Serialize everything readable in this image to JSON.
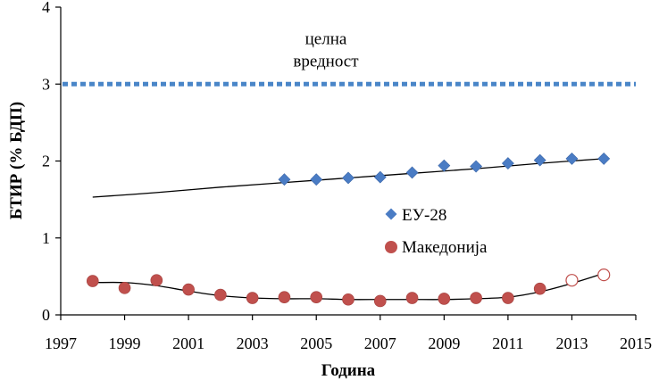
{
  "chart_data": {
    "type": "scatter",
    "xlabel": "Година",
    "ylabel": "БТИР (% БДП)",
    "xlim": [
      1997,
      2015
    ],
    "ylim": [
      0,
      4
    ],
    "xticks": [
      "1997",
      "1999",
      "2001",
      "2003",
      "2005",
      "2007",
      "2009",
      "2011",
      "2013",
      "2015"
    ],
    "yticks": [
      "0",
      "1",
      "2",
      "3",
      "4"
    ],
    "grid": false,
    "legend_position": "center-right",
    "target": {
      "value": 3,
      "label_line1": "целна",
      "label_line2": "вредност",
      "color": "#4a86c8"
    },
    "series": [
      {
        "name": "ЕУ-28",
        "marker": "diamond",
        "color": "#4a7cc4",
        "x": [
          2004,
          2005,
          2006,
          2007,
          2008,
          2009,
          2010,
          2011,
          2012,
          2013,
          2014
        ],
        "y": [
          1.76,
          1.76,
          1.78,
          1.79,
          1.85,
          1.94,
          1.93,
          1.97,
          2.01,
          2.03,
          2.03
        ]
      },
      {
        "name": "Македонија",
        "marker": "circle",
        "color": "#c0504d",
        "x": [
          1998,
          1999,
          2000,
          2001,
          2002,
          2003,
          2004,
          2005,
          2006,
          2007,
          2008,
          2009,
          2010,
          2011,
          2012
        ],
        "y": [
          0.44,
          0.35,
          0.45,
          0.33,
          0.26,
          0.22,
          0.23,
          0.23,
          0.2,
          0.18,
          0.22,
          0.21,
          0.22,
          0.22,
          0.34
        ]
      },
      {
        "marker": "open-circle",
        "color": "#c0504d",
        "x": [
          2013,
          2014
        ],
        "y": [
          0.45,
          0.52
        ]
      }
    ],
    "trendlines": [
      {
        "color": "#000000",
        "x": [
          1998,
          2000,
          2002,
          2004,
          2006,
          2008,
          2010,
          2012,
          2014
        ],
        "y": [
          1.53,
          1.59,
          1.66,
          1.72,
          1.78,
          1.84,
          1.9,
          1.97,
          2.03
        ]
      },
      {
        "color": "#000000",
        "x": [
          1998,
          1999,
          2000,
          2001,
          2002,
          2003,
          2004,
          2005,
          2006,
          2007,
          2008,
          2009,
          2010,
          2011,
          2012,
          2013,
          2014
        ],
        "y": [
          0.42,
          0.42,
          0.38,
          0.31,
          0.25,
          0.22,
          0.21,
          0.21,
          0.2,
          0.2,
          0.2,
          0.2,
          0.21,
          0.23,
          0.3,
          0.41,
          0.54
        ]
      }
    ]
  }
}
